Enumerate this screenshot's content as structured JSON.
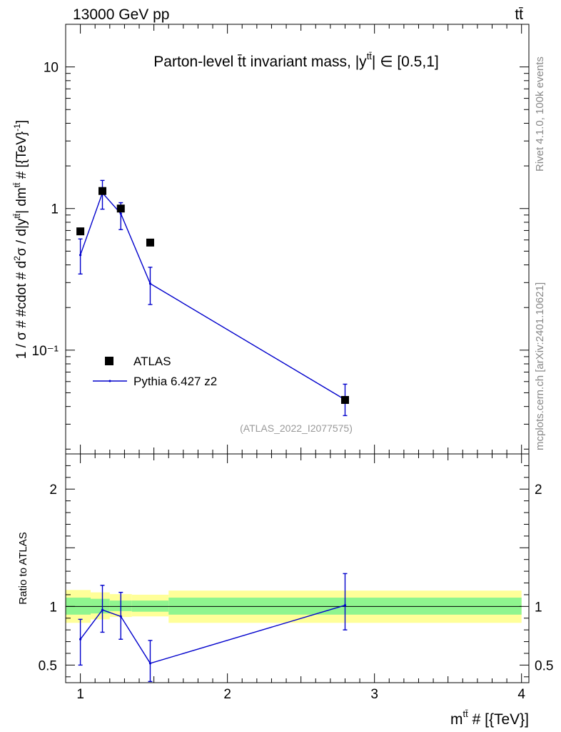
{
  "header": {
    "left": "13000 GeV pp",
    "right": "tt̄"
  },
  "side_labels": {
    "rivet": "Rivet 4.1.0,  100k events",
    "mcplots": "mcplots.cern.ch [arXiv:2401.10621]"
  },
  "colors": {
    "data": "#000000",
    "mc": "#0000cc",
    "band_inner": "#8ff58f",
    "band_outer": "#ffff99",
    "watermark": "#999999"
  },
  "chart_data": [
    {
      "type": "scatter",
      "title": "Parton-level t̄t invariant mass, |y^tt̄| ∈ [0.5,1]",
      "title_main": "Parton-level t̄t invariant mass, |y",
      "title_sup": "tt̄",
      "title_tail": "| ∈ [0.5,1]",
      "ylabel": "1 / σ # #cdot # d²σ / d|y^tt̄| dm^tt̄ # [{TeV}⁻¹]",
      "ylabel_a": "1 / σ # #cdot # d",
      "ylabel_b": "2",
      "ylabel_c": "σ / d|y",
      "ylabel_d": "tt̄",
      "ylabel_e": "| dm",
      "ylabel_f": "tt̄",
      "ylabel_g": " # [{TeV}",
      "ylabel_h": "-1",
      "ylabel_i": "]",
      "yscale": "log",
      "ylim": [
        0.0185,
        20
      ],
      "xlim": [
        0.9,
        4.05
      ],
      "yticks": [
        {
          "v": 10,
          "label": "10"
        },
        {
          "v": 1,
          "label": "1"
        },
        {
          "v": 0.1,
          "label": "10⁻¹"
        }
      ],
      "watermark": "(ATLAS_2022_I2077575)",
      "series": [
        {
          "name": "ATLAS",
          "style": "markers",
          "points": [
            {
              "x": 1.0,
              "y": 0.69
            },
            {
              "x": 1.15,
              "y": 1.33
            },
            {
              "x": 1.275,
              "y": 1.0
            },
            {
              "x": 1.475,
              "y": 0.575
            },
            {
              "x": 2.8,
              "y": 0.0445
            }
          ]
        },
        {
          "name": "Pythia 6.427 z2",
          "style": "line",
          "points": [
            {
              "x": 1.0,
              "y": 0.47,
              "ylo": 0.345,
              "yhi": 0.61
            },
            {
              "x": 1.15,
              "y": 1.29,
              "ylo": 0.99,
              "yhi": 1.58
            },
            {
              "x": 1.275,
              "y": 0.92,
              "ylo": 0.71,
              "yhi": 1.1
            },
            {
              "x": 1.475,
              "y": 0.295,
              "ylo": 0.21,
              "yhi": 0.385
            },
            {
              "x": 2.8,
              "y": 0.0447,
              "ylo": 0.0345,
              "yhi": 0.0575
            }
          ]
        }
      ]
    },
    {
      "type": "line",
      "ylabel": "Ratio to ATLAS",
      "xlabel": "m^tt̄ # [{TeV}]",
      "xlabel_a": "m",
      "xlabel_b": "tt̄",
      "xlabel_c": " # [{TeV}]",
      "ylim": [
        0.35,
        2.3
      ],
      "xlim": [
        0.9,
        4.05
      ],
      "xticks": [
        1,
        2,
        3,
        4
      ],
      "yticks": [
        {
          "v": 2,
          "label": "2"
        },
        {
          "v": 1,
          "label": "1"
        },
        {
          "v": 0.5,
          "label": "0.5"
        }
      ],
      "bands": [
        {
          "x0": 0.9,
          "x1": 1.07,
          "inner": [
            0.93,
            1.075
          ],
          "outer": [
            0.86,
            1.14
          ]
        },
        {
          "x0": 1.07,
          "x1": 1.2,
          "inner": [
            0.94,
            1.065
          ],
          "outer": [
            0.89,
            1.12
          ]
        },
        {
          "x0": 1.2,
          "x1": 1.35,
          "inner": [
            0.96,
            1.05
          ],
          "outer": [
            0.91,
            1.105
          ]
        },
        {
          "x0": 1.35,
          "x1": 1.6,
          "inner": [
            0.955,
            1.05
          ],
          "outer": [
            0.915,
            1.1
          ]
        },
        {
          "x0": 1.6,
          "x1": 4.0,
          "inner": [
            0.93,
            1.075
          ],
          "outer": [
            0.86,
            1.135
          ]
        }
      ],
      "series": [
        {
          "name": "Pythia 6.427 z2 / ATLAS",
          "points": [
            {
              "x": 1.0,
              "y": 0.72,
              "ylo": 0.5,
              "yhi": 0.89
            },
            {
              "x": 1.15,
              "y": 0.97,
              "ylo": 0.78,
              "yhi": 1.18
            },
            {
              "x": 1.275,
              "y": 0.915,
              "ylo": 0.72,
              "yhi": 1.12
            },
            {
              "x": 1.475,
              "y": 0.515,
              "ylo": 0.36,
              "yhi": 0.71
            },
            {
              "x": 2.8,
              "y": 1.01,
              "ylo": 0.8,
              "yhi": 1.28
            }
          ]
        }
      ]
    }
  ]
}
